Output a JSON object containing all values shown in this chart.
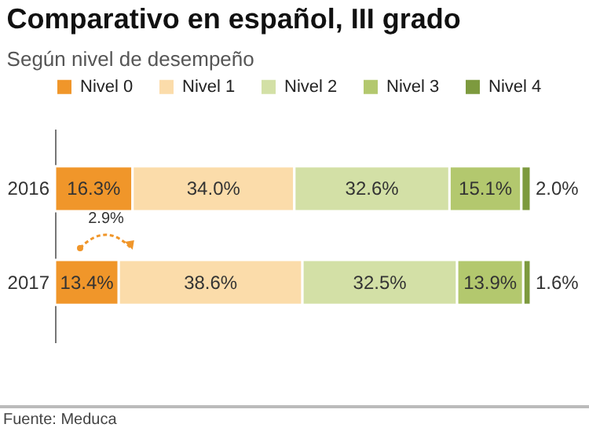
{
  "chart_data": {
    "type": "bar",
    "orientation": "horizontal",
    "stacked": true,
    "title": "Comparativo en español, III grado",
    "subtitle": "Según nivel de desempeño",
    "categories": [
      "2016",
      "2017"
    ],
    "series": [
      {
        "name": "Nivel 0",
        "color": "#f0962a",
        "values": [
          16.3,
          13.4
        ],
        "value_labels": [
          "16.3%",
          "13.4%"
        ]
      },
      {
        "name": "Nivel 1",
        "color": "#fbdcaa",
        "values": [
          34.0,
          38.6
        ],
        "value_labels": [
          "34.0%",
          "38.6%"
        ]
      },
      {
        "name": "Nivel 2",
        "color": "#d3e0a6",
        "values": [
          32.6,
          32.5
        ],
        "value_labels": [
          "32.6%",
          "32.5%"
        ]
      },
      {
        "name": "Nivel 3",
        "color": "#b3c86e",
        "values": [
          15.1,
          13.9
        ],
        "value_labels": [
          "15.1%",
          "13.9%"
        ]
      },
      {
        "name": "Nivel 4",
        "color": "#7d9a3e",
        "values": [
          2.0,
          1.6
        ],
        "value_labels": [
          "2.0%",
          "1.6%"
        ]
      }
    ],
    "legend": "top",
    "annotations": [
      "2.9%",
      "Fuente: Meduca"
    ]
  }
}
